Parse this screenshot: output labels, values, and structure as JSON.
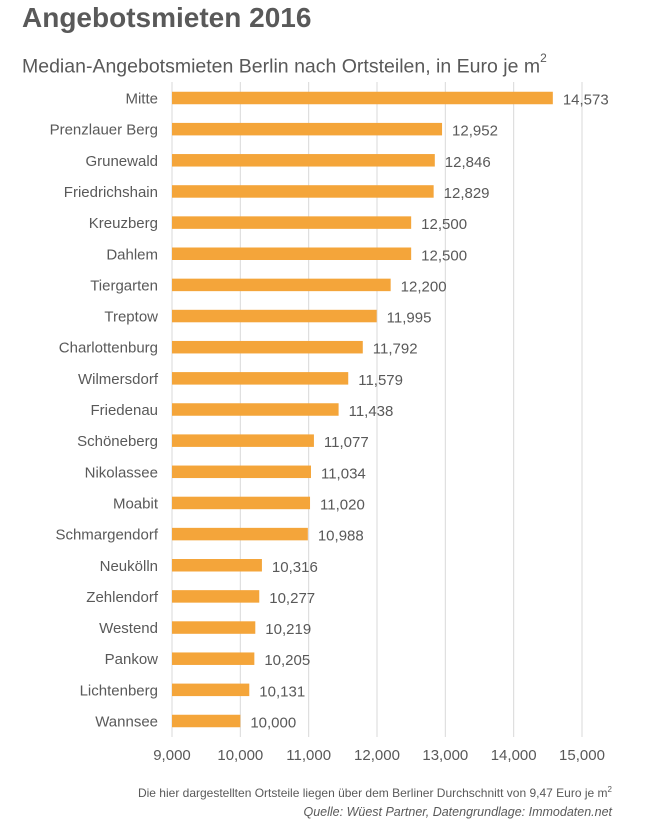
{
  "header": {
    "title": "Angebotsmieten 2016",
    "subtitle": "Median-Angebotsmieten Berlin nach Ortsteilen, in Euro je m",
    "subtitle_sup": "2"
  },
  "footer": {
    "note": "Die hier dargestellten Ortsteile liegen über dem Berliner Durchschnitt von 9,47 Euro je m",
    "note_sup": "2",
    "source": "Quelle: Wüest Partner, Datengrundlage: Immodaten.net"
  },
  "chart_data": {
    "type": "bar",
    "orientation": "horizontal",
    "title": "Angebotsmieten 2016",
    "subtitle": "Median-Angebotsmieten Berlin nach Ortsteilen, in Euro je m²",
    "categories": [
      "Mitte",
      "Prenzlauer Berg",
      "Grunewald",
      "Friedrichshain",
      "Kreuzberg",
      "Dahlem",
      "Tiergarten",
      "Treptow",
      "Charlottenburg",
      "Wilmersdorf",
      "Friedenau",
      "Schöneberg",
      "Nikolassee",
      "Moabit",
      "Schmargendorf",
      "Neukölln",
      "Zehlendorf",
      "Westend",
      "Pankow",
      "Lichtenberg",
      "Wannsee"
    ],
    "values": [
      14.573,
      12.952,
      12.846,
      12.829,
      12.5,
      12.5,
      12.2,
      11.995,
      11.792,
      11.579,
      11.438,
      11.077,
      11.034,
      11.02,
      10.988,
      10.316,
      10.277,
      10.219,
      10.205,
      10.131,
      10.0
    ],
    "value_labels": [
      "14,573",
      "12,952",
      "12,846",
      "12,829",
      "12,500",
      "12,500",
      "12,200",
      "11,995",
      "11,792",
      "11,579",
      "11,438",
      "11,077",
      "11,034",
      "11,020",
      "10,988",
      "10,316",
      "10,277",
      "10,219",
      "10,205",
      "10,131",
      "10,000"
    ],
    "xlim": [
      9,
      15
    ],
    "xticks": [
      9,
      10,
      11,
      12,
      13,
      14,
      15
    ],
    "xtick_labels": [
      "9,000",
      "10,000",
      "11,000",
      "12,000",
      "13,000",
      "14,000",
      "15,000"
    ],
    "grid": "vertical",
    "bar_color": "#F4A53A",
    "grid_color": "#D9D9D9",
    "text_color": "#595959"
  }
}
